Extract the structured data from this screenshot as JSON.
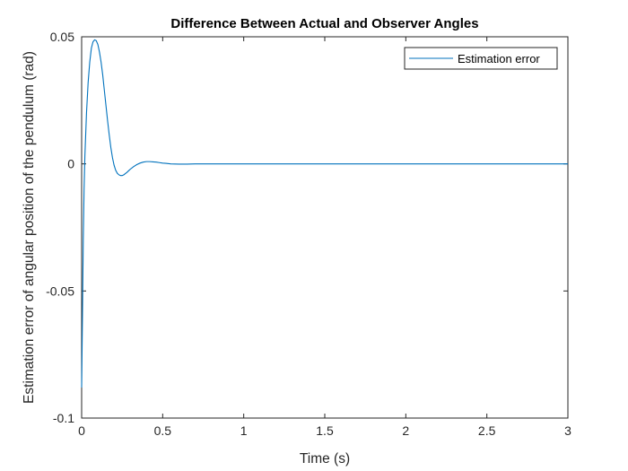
{
  "chart_data": {
    "type": "line",
    "title": "Difference Between Actual and Observer Angles",
    "xlabel": "Time (s)",
    "ylabel": "Estimation error of angular position of the pendulum (rad)",
    "xlim": [
      0,
      3
    ],
    "ylim": [
      -0.1,
      0.05
    ],
    "x_ticks": [
      0,
      0.5,
      1,
      1.5,
      2,
      2.5,
      3
    ],
    "x_tick_labels": [
      "0",
      "0.5",
      "1",
      "1.5",
      "2",
      "2.5",
      "3"
    ],
    "y_ticks": [
      -0.1,
      -0.05,
      0,
      0.05
    ],
    "y_tick_labels": [
      "-0.1",
      "-0.05",
      "0",
      "0.05"
    ],
    "grid": false,
    "legend_position": "top-right",
    "series": [
      {
        "name": "Estimation error",
        "color": "#0072BD",
        "x": [
          0,
          0.005,
          0.01,
          0.015,
          0.02,
          0.03,
          0.04,
          0.05,
          0.06,
          0.07,
          0.08,
          0.09,
          0.1,
          0.11,
          0.12,
          0.13,
          0.14,
          0.15,
          0.16,
          0.17,
          0.18,
          0.19,
          0.2,
          0.21,
          0.22,
          0.23,
          0.24,
          0.25,
          0.26,
          0.27,
          0.28,
          0.29,
          0.3,
          0.32,
          0.34,
          0.36,
          0.38,
          0.4,
          0.42,
          0.44,
          0.46,
          0.48,
          0.5,
          0.52,
          0.55,
          0.6,
          0.65,
          0.7,
          0.8,
          0.9,
          1.0,
          1.5,
          2.0,
          2.5,
          3.0
        ],
        "y": [
          -0.088,
          -0.06,
          -0.03,
          -0.01,
          0.003,
          0.02,
          0.032,
          0.04,
          0.0455,
          0.048,
          0.0488,
          0.0485,
          0.047,
          0.044,
          0.04,
          0.035,
          0.029,
          0.023,
          0.017,
          0.0115,
          0.0065,
          0.0025,
          -0.0005,
          -0.0025,
          -0.0037,
          -0.0043,
          -0.0046,
          -0.0046,
          -0.0043,
          -0.0038,
          -0.0033,
          -0.0027,
          -0.0021,
          -0.0011,
          -0.0003,
          0.0003,
          0.0007,
          0.0009,
          0.0009,
          0.0008,
          0.0007,
          0.0005,
          0.0003,
          0.0002,
          0.0,
          -0.0001,
          -0.0001,
          0.0,
          0.0,
          0.0,
          0.0,
          0.0,
          0.0,
          0.0,
          0.0
        ]
      }
    ]
  }
}
